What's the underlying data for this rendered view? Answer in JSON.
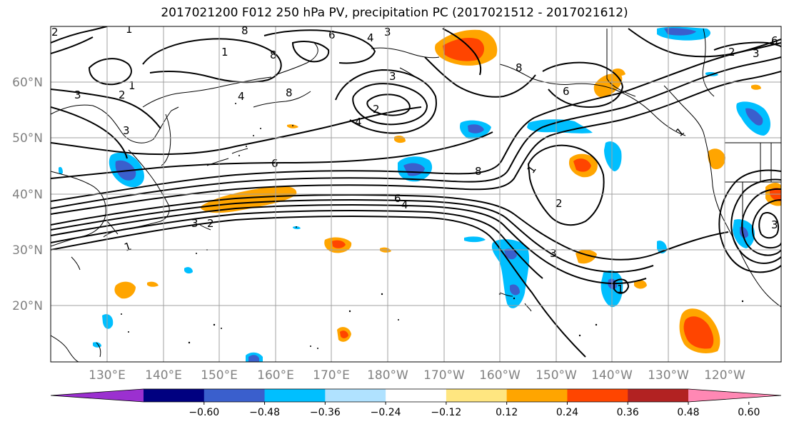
{
  "title": "2017021200 F012 250 hPa PV, precipitation PC (2017021512 - 2017021612)",
  "map": {
    "lat_labels": [
      "60°N",
      "50°N",
      "40°N",
      "30°N",
      "20°N"
    ],
    "lon_labels": [
      "130°E",
      "140°E",
      "150°E",
      "160°E",
      "170°E",
      "180°W",
      "170°W",
      "160°W",
      "150°W",
      "140°W",
      "130°W",
      "120°W"
    ],
    "contour_labels": [
      "1",
      "2",
      "3",
      "4",
      "6",
      "8"
    ]
  },
  "colorbar": {
    "tick_labels": [
      "−0.60",
      "−0.48",
      "−0.36",
      "−0.24",
      "−0.12",
      "0.12",
      "0.24",
      "0.36",
      "0.48",
      "0.60"
    ],
    "colors": [
      "#9b30d0",
      "#000080",
      "#3a5fcd",
      "#00bfff",
      "#b0e2ff",
      "#ffffff",
      "#ffe680",
      "#ffa500",
      "#ff4500",
      "#b22222",
      "#ff88b4"
    ]
  }
}
